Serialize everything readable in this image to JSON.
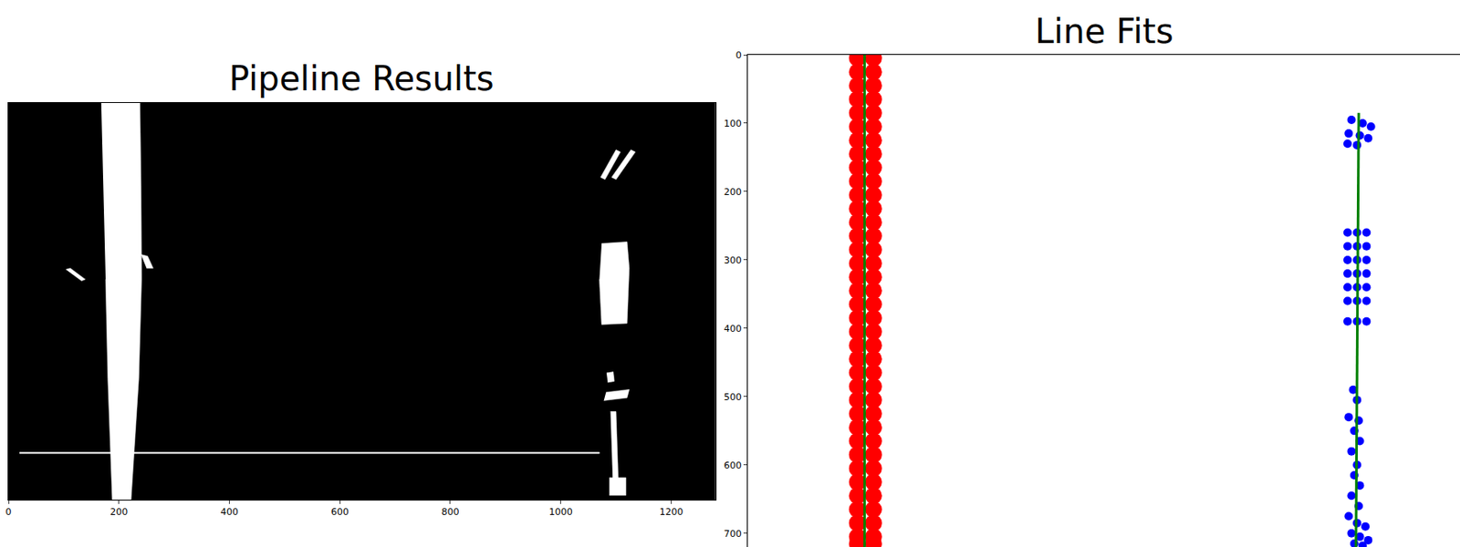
{
  "chart_data": [
    {
      "type": "binary_image",
      "title": "Pipeline Results",
      "xlim": [
        0,
        1280
      ],
      "ylim": [
        720,
        0
      ],
      "xticks": [
        0,
        200,
        400,
        600,
        800,
        1000,
        1200
      ],
      "tick_labels": "x",
      "color": "#ffffff",
      "regions": [
        {
          "x": [
            168,
            238,
            240,
            241,
            236,
            222,
            188,
            180,
            176
          ],
          "y": [
            0,
            0,
            150,
            320,
            500,
            720,
            720,
            500,
            320
          ]
        },
        {
          "x": [
            240,
            252,
            262,
            250
          ],
          "y": [
            275,
            278,
            300,
            300
          ]
        },
        {
          "x": [
            104,
            112,
            139,
            132
          ],
          "y": [
            302,
            300,
            320,
            323
          ]
        },
        {
          "x": [
            1072,
            1100,
            1108,
            1080
          ],
          "y": [
            135,
            85,
            89,
            139
          ]
        },
        {
          "x": [
            1092,
            1127,
            1135,
            1100
          ],
          "y": [
            135,
            85,
            89,
            139
          ]
        },
        {
          "x": [
            1074,
            1120,
            1124,
            1120,
            1074,
            1070
          ],
          "y": [
            255,
            252,
            300,
            400,
            402,
            320
          ]
        },
        {
          "x": [
            1083,
            1095,
            1097,
            1085
          ],
          "y": [
            490,
            488,
            505,
            507
          ]
        },
        {
          "x": [
            1082,
            1124,
            1120,
            1078
          ],
          "y": [
            525,
            520,
            535,
            540
          ]
        },
        {
          "x": [
            1090,
            1100,
            1104,
            1094
          ],
          "y": [
            560,
            560,
            680,
            680
          ]
        },
        {
          "x": [
            1088,
            1118,
            1118,
            1088
          ],
          "y": [
            680,
            680,
            712,
            712
          ]
        },
        {
          "x": [
            20,
            1070,
            1070,
            20
          ],
          "y": [
            634,
            634,
            636,
            636
          ]
        }
      ]
    },
    {
      "type": "scatter",
      "title": "Line Fits",
      "xlim": [
        0,
        1280
      ],
      "ylim": [
        720,
        0
      ],
      "yticks": [
        0,
        100,
        200,
        300,
        400,
        500,
        600,
        700
      ],
      "tick_labels": "y",
      "series": [
        {
          "type": "scatter",
          "color": "#ff0000",
          "marker": "circle",
          "x": [
            197,
            197,
            197,
            197,
            197,
            197,
            197,
            197,
            197,
            197,
            197,
            197,
            197,
            197,
            197,
            197,
            197,
            197,
            197,
            197,
            197,
            197,
            197,
            197,
            197,
            197,
            197,
            197,
            197,
            197,
            197,
            197,
            197,
            197,
            197,
            197,
            197,
            226,
            226,
            226,
            226,
            226,
            226,
            226,
            226,
            226,
            226,
            226,
            226,
            226,
            226,
            226,
            226,
            226,
            226,
            226,
            226,
            226,
            226,
            226,
            226,
            226,
            226,
            226,
            226,
            226,
            226,
            226,
            226,
            226,
            226,
            226,
            226,
            226
          ],
          "values": [
            5,
            25,
            45,
            65,
            85,
            105,
            125,
            145,
            165,
            185,
            205,
            225,
            245,
            265,
            285,
            305,
            325,
            345,
            365,
            385,
            405,
            425,
            445,
            465,
            485,
            505,
            525,
            545,
            565,
            585,
            605,
            625,
            645,
            665,
            685,
            705,
            715,
            5,
            25,
            45,
            65,
            85,
            105,
            125,
            145,
            165,
            185,
            205,
            225,
            245,
            265,
            285,
            305,
            325,
            345,
            365,
            385,
            405,
            425,
            445,
            465,
            485,
            505,
            525,
            545,
            565,
            585,
            605,
            625,
            645,
            665,
            685,
            705,
            715
          ]
        },
        {
          "type": "scatter",
          "color": "#0000ff",
          "marker": "circle",
          "x": [
            1085,
            1105,
            1120,
            1080,
            1100,
            1115,
            1078,
            1095,
            1078,
            1095,
            1112,
            1078,
            1095,
            1112,
            1078,
            1095,
            1112,
            1078,
            1095,
            1112,
            1078,
            1095,
            1112,
            1078,
            1095,
            1112,
            1078,
            1095,
            1112,
            1088,
            1095,
            1080,
            1098,
            1090,
            1100,
            1085,
            1095,
            1090,
            1100,
            1085,
            1098,
            1080,
            1095,
            1110,
            1085,
            1100,
            1115,
            1090,
            1105
          ],
          "values": [
            95,
            100,
            105,
            115,
            118,
            122,
            130,
            132,
            260,
            260,
            260,
            280,
            280,
            280,
            300,
            300,
            300,
            320,
            320,
            320,
            340,
            340,
            340,
            360,
            360,
            360,
            390,
            390,
            390,
            490,
            505,
            530,
            535,
            550,
            565,
            580,
            600,
            615,
            630,
            645,
            660,
            675,
            685,
            690,
            700,
            705,
            710,
            715,
            718
          ]
        },
        {
          "type": "line",
          "color": "#008000",
          "x": [
            210,
            210
          ],
          "values": [
            0,
            720
          ]
        },
        {
          "type": "line",
          "color": "#008000",
          "x": [
            1098,
            1096,
            1094,
            1093
          ],
          "values": [
            85,
            300,
            550,
            720
          ]
        }
      ]
    }
  ]
}
